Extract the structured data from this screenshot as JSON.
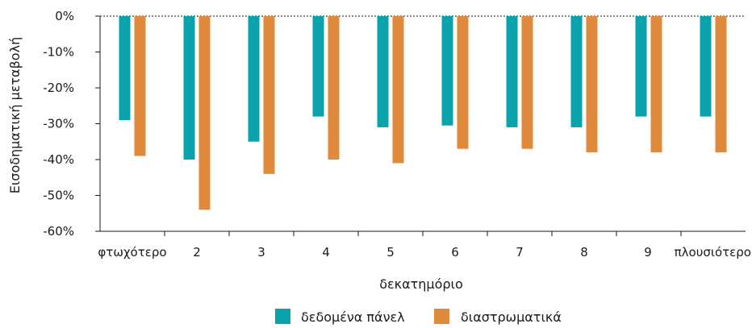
{
  "chart_data": {
    "type": "bar",
    "title": "",
    "xlabel": "δεκατημόριο",
    "ylabel": "Εισοδηματική μεταβολή",
    "categories": [
      "φτωχότερο",
      "2",
      "3",
      "4",
      "5",
      "6",
      "7",
      "8",
      "9",
      "πλουσιότερο"
    ],
    "series": [
      {
        "name": "δεδομένα πάνελ",
        "color": "#0aa3ad",
        "values": [
          -29,
          -40,
          -35,
          -28,
          -31,
          -30.5,
          -31,
          -31,
          -28,
          -28
        ]
      },
      {
        "name": "διαστρωματικά",
        "color": "#e08a3c",
        "values": [
          -39,
          -54,
          -44,
          -40,
          -41,
          -37,
          -37,
          -38,
          -38,
          -38
        ]
      }
    ],
    "ylim": [
      -60,
      0
    ],
    "yticks": [
      0,
      -10,
      -20,
      -30,
      -40,
      -50,
      -60
    ],
    "ytick_labels": [
      "0%",
      "-10%",
      "-20%",
      "-30%",
      "-40%",
      "-50%",
      "-60%"
    ],
    "grid": false,
    "legend_position": "bottom"
  }
}
